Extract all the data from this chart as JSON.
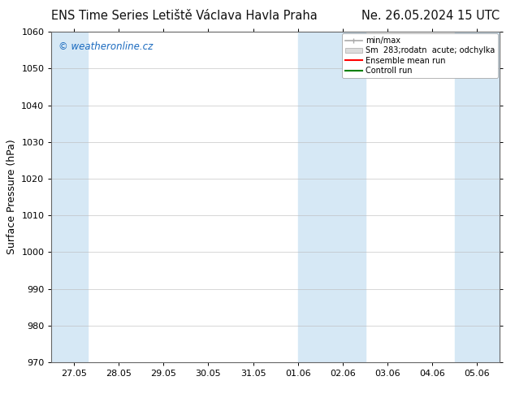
{
  "title_left": "ENS Time Series Letiště Václava Havla Praha",
  "title_right": "Ne. 26.05.2024 15 UTC",
  "ylabel": "Surface Pressure (hPa)",
  "ylim": [
    970,
    1060
  ],
  "yticks": [
    970,
    980,
    990,
    1000,
    1010,
    1020,
    1030,
    1040,
    1050,
    1060
  ],
  "xtick_labels": [
    "27.05",
    "28.05",
    "29.05",
    "30.05",
    "31.05",
    "01.06",
    "02.06",
    "03.06",
    "04.06",
    "05.06"
  ],
  "x_values": [
    0,
    1,
    2,
    3,
    4,
    5,
    6,
    7,
    8,
    9
  ],
  "xlim": [
    -0.5,
    9.5
  ],
  "shaded_bands": [
    {
      "x_start": -0.5,
      "x_end": 0.3,
      "color": "#d6e8f5"
    },
    {
      "x_start": 5.0,
      "x_end": 6.5,
      "color": "#d6e8f5"
    },
    {
      "x_start": 8.5,
      "x_end": 9.5,
      "color": "#d6e8f5"
    }
  ],
  "background_color": "#ffffff",
  "plot_bg_color": "#ffffff",
  "watermark_text": "© weatheronline.cz",
  "watermark_color": "#1a6abf",
  "legend_items": [
    {
      "label": "min/max",
      "color": "#aaaaaa"
    },
    {
      "label": "Sm  283;rodatn  acute; odchylka",
      "color": "#cccccc"
    },
    {
      "label": "Ensemble mean run",
      "color": "#ff0000"
    },
    {
      "label": "Controll run",
      "color": "#008000"
    }
  ],
  "title_fontsize": 10.5,
  "axis_label_fontsize": 9,
  "tick_fontsize": 8,
  "legend_fontsize": 7,
  "grid_color": "#bbbbbb",
  "grid_alpha": 0.6,
  "border_color": "#666666"
}
